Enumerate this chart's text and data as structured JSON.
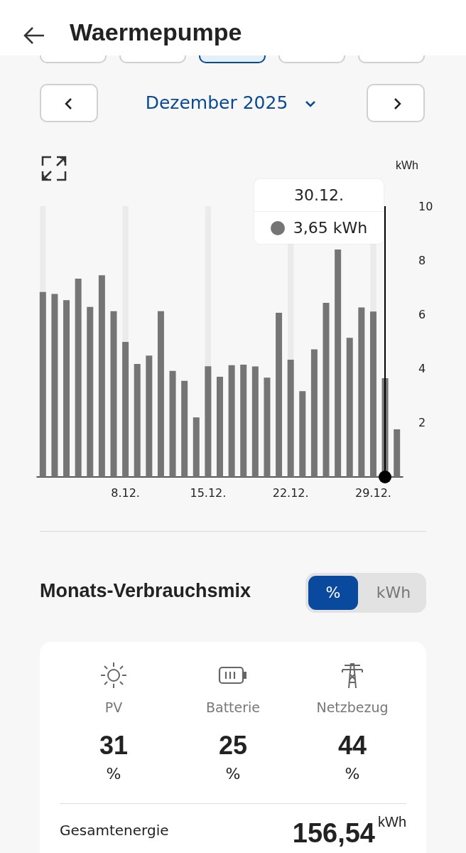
{
  "chart_data": [
    {
      "type": "bar",
      "title": "Waermepumpe",
      "subtitle": "Dezember 2025",
      "ylabel": "kWh",
      "x": [
        "2025-12-01",
        "2025-12-02",
        "2025-12-03",
        "2025-12-04",
        "2025-12-05",
        "2025-12-06",
        "2025-12-07",
        "2025-12-08",
        "2025-12-09",
        "2025-12-10",
        "2025-12-11",
        "2025-12-12",
        "2025-12-13",
        "2025-12-14",
        "2025-12-15",
        "2025-12-16",
        "2025-12-17",
        "2025-12-18",
        "2025-12-19",
        "2025-12-20",
        "2025-12-21",
        "2025-12-22",
        "2025-12-23",
        "2025-12-24",
        "2025-12-25",
        "2025-12-26",
        "2025-12-27",
        "2025-12-28",
        "2025-12-29",
        "2025-12-30",
        "2025-12-31"
      ],
      "values": [
        6.83,
        6.76,
        6.53,
        7.32,
        6.28,
        7.45,
        6.12,
        4.99,
        4.17,
        4.48,
        6.12,
        3.92,
        3.55,
        2.2,
        4.09,
        3.7,
        4.13,
        4.15,
        4.08,
        3.67,
        6.06,
        4.33,
        3.17,
        4.71,
        6.43,
        8.4,
        5.14,
        6.26,
        6.11,
        3.65,
        1.76
      ],
      "color": "#757575",
      "xlim": [
        "2025-11-30T12:00",
        "2025-12-31T12:00"
      ],
      "xticks": [
        {
          "value": "2025-12-08",
          "label": "8.12."
        },
        {
          "value": "2025-12-15",
          "label": "15.12."
        },
        {
          "value": "2025-12-22",
          "label": "22.12."
        },
        {
          "value": "2025-12-29",
          "label": "29.12."
        }
      ],
      "ylim": [
        0,
        10
      ],
      "yticks": [
        2,
        4,
        6,
        8,
        10
      ],
      "bands": [
        {
          "axis": "x",
          "from": "2025-11-30T18:00",
          "to": "2025-12-01T06:00",
          "color": "#ebebeb"
        },
        {
          "axis": "x",
          "from": "2025-12-07T18:00",
          "to": "2025-12-08T06:00",
          "color": "#ebebeb"
        },
        {
          "axis": "x",
          "from": "2025-12-14T18:00",
          "to": "2025-12-15T06:00",
          "color": "#ebebeb"
        },
        {
          "axis": "x",
          "from": "2025-12-21T18:00",
          "to": "2025-12-22T06:00",
          "color": "#ebebeb"
        },
        {
          "axis": "x",
          "from": "2025-12-28T18:00",
          "to": "2025-12-29T06:00",
          "color": "#ebebeb"
        }
      ],
      "ref_lines": [
        {
          "axis": "x",
          "value": "2025-12-30",
          "color": "#000000"
        }
      ],
      "annotations": [
        "30.12.",
        "3,65 kWh"
      ]
    },
    {
      "type": "other",
      "title": "Monats-Verbrauchsmix",
      "categories": [
        "PV",
        "Batterie",
        "Netzbezug"
      ],
      "values": [
        31,
        25,
        44
      ],
      "data_labels": true,
      "ylabel": "%",
      "annotations": [
        "%",
        "kWh",
        "Gesamtenergie",
        "156,54$^{kWh}$"
      ]
    }
  ]
}
